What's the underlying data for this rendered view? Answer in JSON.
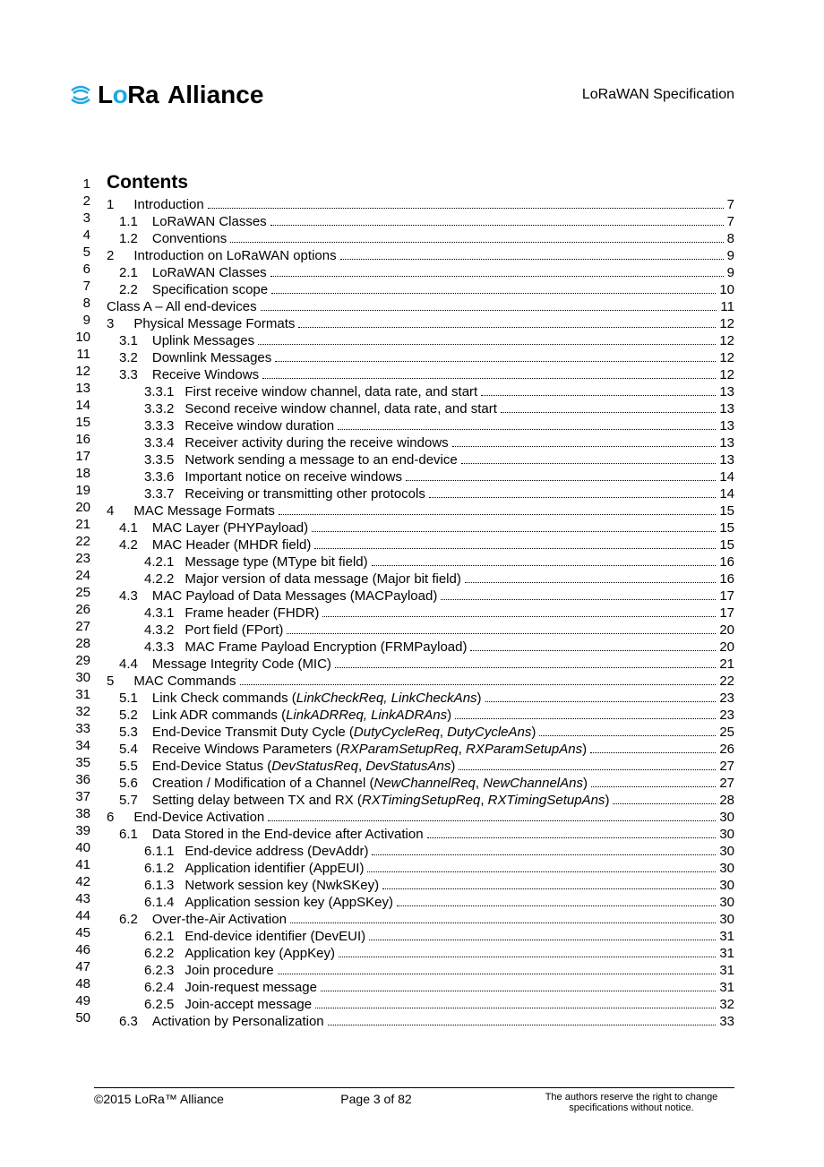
{
  "header": {
    "logo_lora": "LoRa",
    "logo_alliance": "Alliance",
    "doc_title": "LoRaWAN Specification"
  },
  "contents_heading": "Contents",
  "line_start": 1,
  "line_end": 50,
  "toc": [
    {
      "indent": 0,
      "num": "1",
      "title": "Introduction",
      "page": "7"
    },
    {
      "indent": 1,
      "num": "1.1",
      "title": "LoRaWAN Classes",
      "page": "7"
    },
    {
      "indent": 1,
      "num": "1.2",
      "title": "Conventions",
      "page": "8"
    },
    {
      "indent": 0,
      "num": "2",
      "title": "Introduction on LoRaWAN options",
      "page": "9"
    },
    {
      "indent": 1,
      "num": "2.1",
      "title": "LoRaWAN Classes",
      "page": "9"
    },
    {
      "indent": 1,
      "num": "2.2",
      "title": "Specification scope",
      "page": "10"
    },
    {
      "indent": -1,
      "num": "",
      "title": "Class A – All end-devices",
      "page": "11"
    },
    {
      "indent": 0,
      "num": "3",
      "title": "Physical Message Formats",
      "page": "12"
    },
    {
      "indent": 1,
      "num": "3.1",
      "title": "Uplink Messages",
      "page": "12"
    },
    {
      "indent": 1,
      "num": "3.2",
      "title": "Downlink Messages",
      "page": "12"
    },
    {
      "indent": 1,
      "num": "3.3",
      "title": "Receive Windows",
      "page": "12"
    },
    {
      "indent": 2,
      "num": "3.3.1",
      "title": "First receive window channel, data rate, and start",
      "page": "13"
    },
    {
      "indent": 2,
      "num": "3.3.2",
      "title": "Second receive window channel, data rate, and start",
      "page": "13"
    },
    {
      "indent": 2,
      "num": "3.3.3",
      "title": "Receive window duration",
      "page": "13"
    },
    {
      "indent": 2,
      "num": "3.3.4",
      "title": "Receiver activity during the receive windows",
      "page": "13"
    },
    {
      "indent": 2,
      "num": "3.3.5",
      "title": "Network sending a message to an end-device",
      "page": "13"
    },
    {
      "indent": 2,
      "num": "3.3.6",
      "title": "Important notice on receive windows",
      "page": "14"
    },
    {
      "indent": 2,
      "num": "3.3.7",
      "title": "Receiving or transmitting other protocols",
      "page": "14"
    },
    {
      "indent": 0,
      "num": "4",
      "title": "MAC Message Formats",
      "page": "15"
    },
    {
      "indent": 1,
      "num": "4.1",
      "title": "MAC Layer (PHYPayload)",
      "page": "15"
    },
    {
      "indent": 1,
      "num": "4.2",
      "title": "MAC Header (MHDR field)",
      "page": "15"
    },
    {
      "indent": 2,
      "num": "4.2.1",
      "title": "Message type (MType bit field)",
      "page": "16"
    },
    {
      "indent": 2,
      "num": "4.2.2",
      "title": "Major version of data message (Major bit field)",
      "page": "16"
    },
    {
      "indent": 1,
      "num": "4.3",
      "title": "MAC Payload of Data Messages (MACPayload)",
      "page": "17"
    },
    {
      "indent": 2,
      "num": "4.3.1",
      "title": "Frame header (FHDR)",
      "page": "17"
    },
    {
      "indent": 2,
      "num": "4.3.2",
      "title": "Port field (FPort)",
      "page": "20"
    },
    {
      "indent": 2,
      "num": "4.3.3",
      "title": "MAC Frame Payload Encryption (FRMPayload)",
      "page": "20"
    },
    {
      "indent": 1,
      "num": "4.4",
      "title": "Message Integrity Code (MIC)",
      "page": "21"
    },
    {
      "indent": 0,
      "num": "5",
      "title": "MAC Commands",
      "page": "22"
    },
    {
      "indent": 1,
      "num": "5.1",
      "title_parts": [
        {
          "t": "Link Check commands ("
        },
        {
          "t": "LinkCheckReq, LinkCheckAns",
          "i": true
        },
        {
          "t": ")"
        }
      ],
      "page": "23"
    },
    {
      "indent": 1,
      "num": "5.2",
      "title_parts": [
        {
          "t": "Link ADR commands ("
        },
        {
          "t": "LinkADRReq, LinkADRAns",
          "i": true
        },
        {
          "t": ")"
        }
      ],
      "page": "23"
    },
    {
      "indent": 1,
      "num": "5.3",
      "title_parts": [
        {
          "t": "End-Device Transmit Duty Cycle ("
        },
        {
          "t": "DutyCycleReq",
          "i": true
        },
        {
          "t": ", "
        },
        {
          "t": "DutyCycleAns",
          "i": true
        },
        {
          "t": ")"
        }
      ],
      "page": "25"
    },
    {
      "indent": 1,
      "num": "5.4",
      "title_parts": [
        {
          "t": "Receive Windows Parameters ("
        },
        {
          "t": "RXParamSetupReq",
          "i": true
        },
        {
          "t": ", "
        },
        {
          "t": "RXParamSetupAns",
          "i": true
        },
        {
          "t": ")"
        }
      ],
      "page": "26"
    },
    {
      "indent": 1,
      "num": "5.5",
      "title_parts": [
        {
          "t": "End-Device Status ("
        },
        {
          "t": "DevStatusReq",
          "i": true
        },
        {
          "t": ", "
        },
        {
          "t": "DevStatusAns",
          "i": true
        },
        {
          "t": ")"
        }
      ],
      "page": "27"
    },
    {
      "indent": 1,
      "num": "5.6",
      "title_parts": [
        {
          "t": "Creation / Modification of a Channel ("
        },
        {
          "t": "NewChannelReq",
          "i": true
        },
        {
          "t": ", "
        },
        {
          "t": "NewChannelAns",
          "i": true
        },
        {
          "t": ")"
        }
      ],
      "page": "27"
    },
    {
      "indent": 1,
      "num": "5.7",
      "title_parts": [
        {
          "t": "Setting delay between TX and RX ("
        },
        {
          "t": "RXTimingSetupReq",
          "i": true
        },
        {
          "t": ", "
        },
        {
          "t": "RXTimingSetupAns",
          "i": true
        },
        {
          "t": ")"
        }
      ],
      "page": "28"
    },
    {
      "indent": 0,
      "num": "6",
      "title": "End-Device Activation",
      "page": "30"
    },
    {
      "indent": 1,
      "num": "6.1",
      "title": "Data Stored in the End-device after Activation",
      "page": "30"
    },
    {
      "indent": 2,
      "num": "6.1.1",
      "title": "End-device address (DevAddr)",
      "page": "30"
    },
    {
      "indent": 2,
      "num": "6.1.2",
      "title": "Application identifier (AppEUI)",
      "page": "30"
    },
    {
      "indent": 2,
      "num": "6.1.3",
      "title": "Network session key (NwkSKey)",
      "page": "30"
    },
    {
      "indent": 2,
      "num": "6.1.4",
      "title": "Application session key (AppSKey)",
      "page": "30"
    },
    {
      "indent": 1,
      "num": "6.2",
      "title": "Over-the-Air Activation",
      "page": "30"
    },
    {
      "indent": 2,
      "num": "6.2.1",
      "title": "End-device identifier (DevEUI)",
      "page": "31"
    },
    {
      "indent": 2,
      "num": "6.2.2",
      "title": "Application key (AppKey)",
      "page": "31"
    },
    {
      "indent": 2,
      "num": "6.2.3",
      "title": "Join procedure",
      "page": "31"
    },
    {
      "indent": 2,
      "num": "6.2.4",
      "title": "Join-request message",
      "page": "31"
    },
    {
      "indent": 2,
      "num": "6.2.5",
      "title": "Join-accept message",
      "page": "32"
    },
    {
      "indent": 1,
      "num": "6.3",
      "title": "Activation by Personalization",
      "page": "33"
    }
  ],
  "footer": {
    "left": "©2015 LoRa™ Alliance",
    "center": "Page 3 of 82",
    "right": "The authors reserve the right to change specifications without notice."
  },
  "colors": {
    "logo_accent": "#1fa8e0",
    "text": "#000000",
    "bg": "#ffffff"
  }
}
